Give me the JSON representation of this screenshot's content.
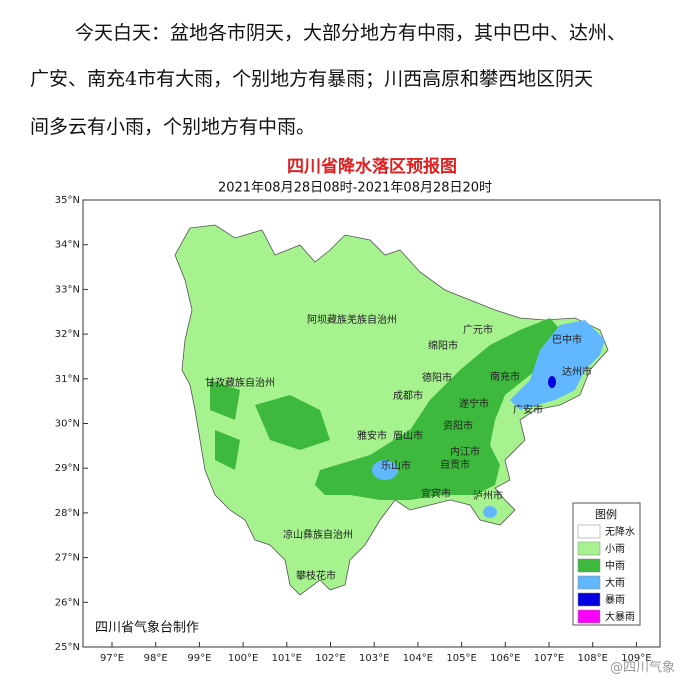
{
  "paragraph": {
    "lines": [
      "今天白天：盆地各市阴天，大部分地方有中雨，其中巴中、达州、",
      "广安、南充4市有大雨，个别地方有暴雨；川西高原和攀西地区阴天",
      "间多云有小雨，个别地方有中雨。"
    ]
  },
  "map": {
    "title": "四川省降水落区预报图",
    "subtitle": "2021年08月28日08时-2021年08月28日20时",
    "lat_labels": [
      "35°N",
      "34°N",
      "33°N",
      "32°N",
      "31°N",
      "30°N",
      "29°N",
      "28°N",
      "27°N",
      "26°N",
      "25°N"
    ],
    "lon_labels": [
      "97°E",
      "98°E",
      "99°E",
      "100°E",
      "101°E",
      "102°E",
      "103°E",
      "104°E",
      "105°E",
      "106°E",
      "107°E",
      "108°E",
      "109°E"
    ],
    "places": [
      "阿坝藏族羌族自治州",
      "甘孜藏族自治州",
      "凉山彝族自治州",
      "攀枝花市",
      "广元市",
      "巴中市",
      "绵阳市",
      "达州市",
      "德阳市",
      "南充市",
      "成都市",
      "遂宁市",
      "广安市",
      "雅安市",
      "眉山市",
      "资阳市",
      "内江市",
      "乐山市",
      "自贡市",
      "宜宾市",
      "泸州市"
    ],
    "legend": {
      "title": "图例",
      "items": [
        {
          "label": "无降水",
          "color": "#ffffff"
        },
        {
          "label": "小雨",
          "color": "#a6f28f"
        },
        {
          "label": "中雨",
          "color": "#3dba3d"
        },
        {
          "label": "大雨",
          "color": "#61b8ff"
        },
        {
          "label": "暴雨",
          "color": "#0000e1"
        },
        {
          "label": "大暴雨",
          "color": "#fa00fa"
        }
      ]
    },
    "credit": "四川省气象台制作"
  },
  "watermark": "@四川气象"
}
